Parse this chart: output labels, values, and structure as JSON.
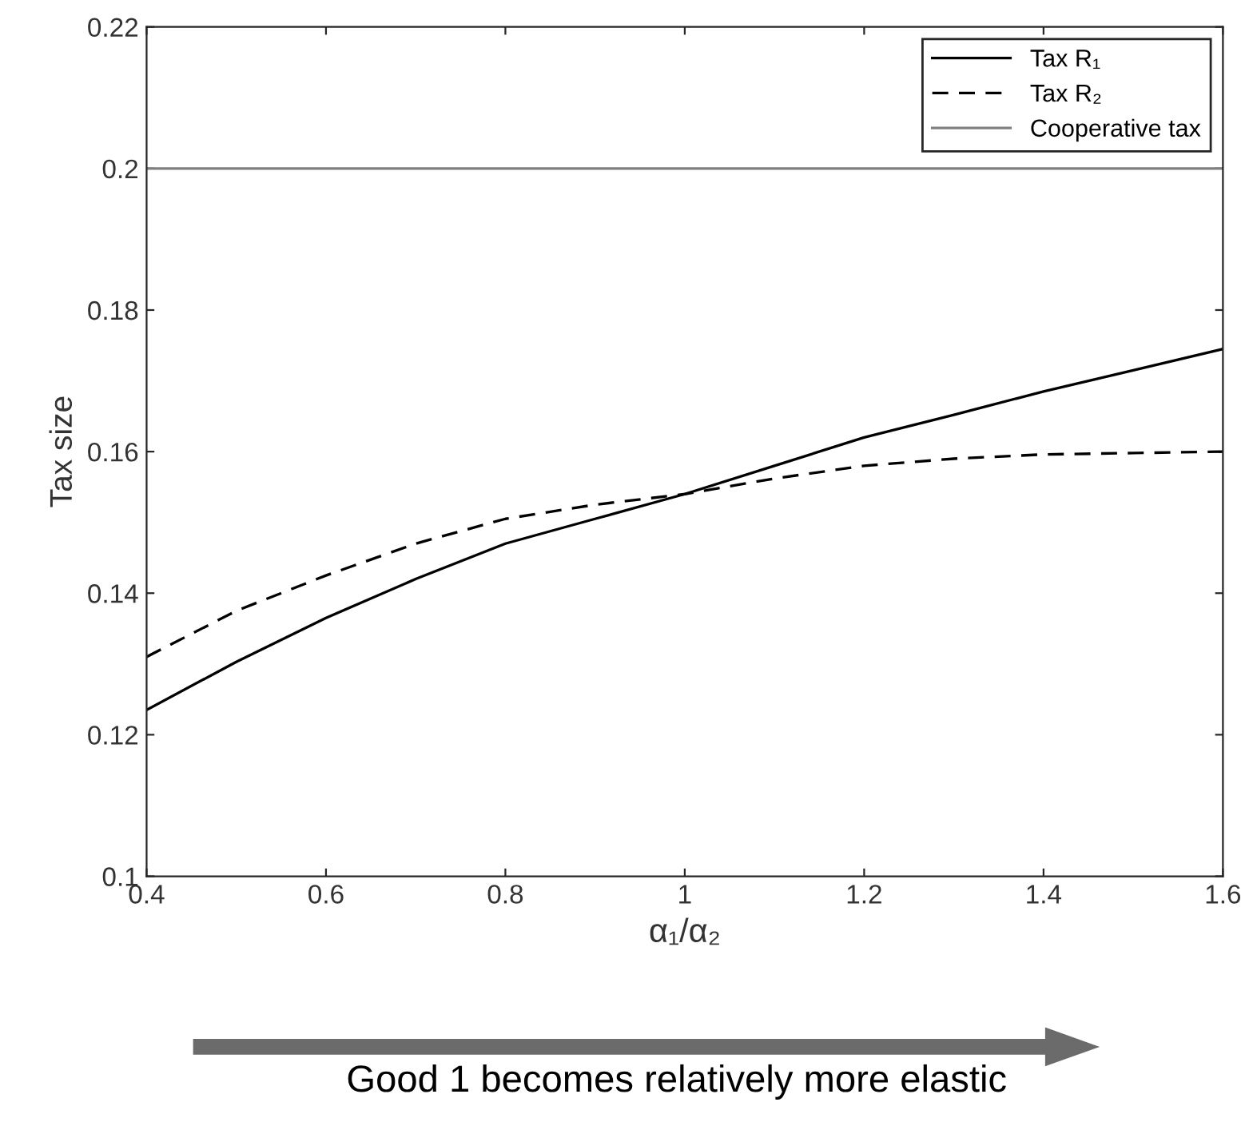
{
  "chart_data": {
    "type": "line",
    "xlabel": "α₁/α₂",
    "ylabel": "Tax size",
    "xlim": [
      0.4,
      1.6
    ],
    "xticks": [
      0.4,
      0.6,
      0.8,
      1,
      1.2,
      1.4,
      1.6
    ],
    "ylim": [
      0.1,
      0.22
    ],
    "yticks": [
      0.1,
      0.12,
      0.14,
      0.16,
      0.18,
      0.2,
      0.22
    ],
    "grid": false,
    "legend": "top right",
    "marker": "none",
    "series": [
      {
        "name": "Tax R₁",
        "color": "#000000",
        "line_style": "solid",
        "x": [
          0.4,
          0.5,
          0.6,
          0.7,
          0.8,
          0.9,
          1.0,
          1.1,
          1.2,
          1.3,
          1.4,
          1.5,
          1.6
        ],
        "values": [
          0.1235,
          0.1303,
          0.1365,
          0.142,
          0.147,
          0.1505,
          0.154,
          0.158,
          0.162,
          0.1652,
          0.1685,
          0.1715,
          0.1745
        ]
      },
      {
        "name": "Tax R₂",
        "color": "#000000",
        "line_style": "dashed",
        "x": [
          0.4,
          0.5,
          0.6,
          0.7,
          0.8,
          0.9,
          1.0,
          1.1,
          1.2,
          1.3,
          1.4,
          1.5,
          1.6
        ],
        "values": [
          0.131,
          0.1375,
          0.1425,
          0.147,
          0.1505,
          0.1525,
          0.154,
          0.1562,
          0.158,
          0.159,
          0.1596,
          0.1598,
          0.16
        ]
      },
      {
        "name": "Cooperative tax",
        "color": "#808080",
        "line_style": "solid",
        "x": [
          0.4,
          1.6
        ],
        "values": [
          0.2,
          0.2
        ]
      }
    ],
    "annotations": [
      "Good 1 becomes relatively more elastic"
    ]
  }
}
